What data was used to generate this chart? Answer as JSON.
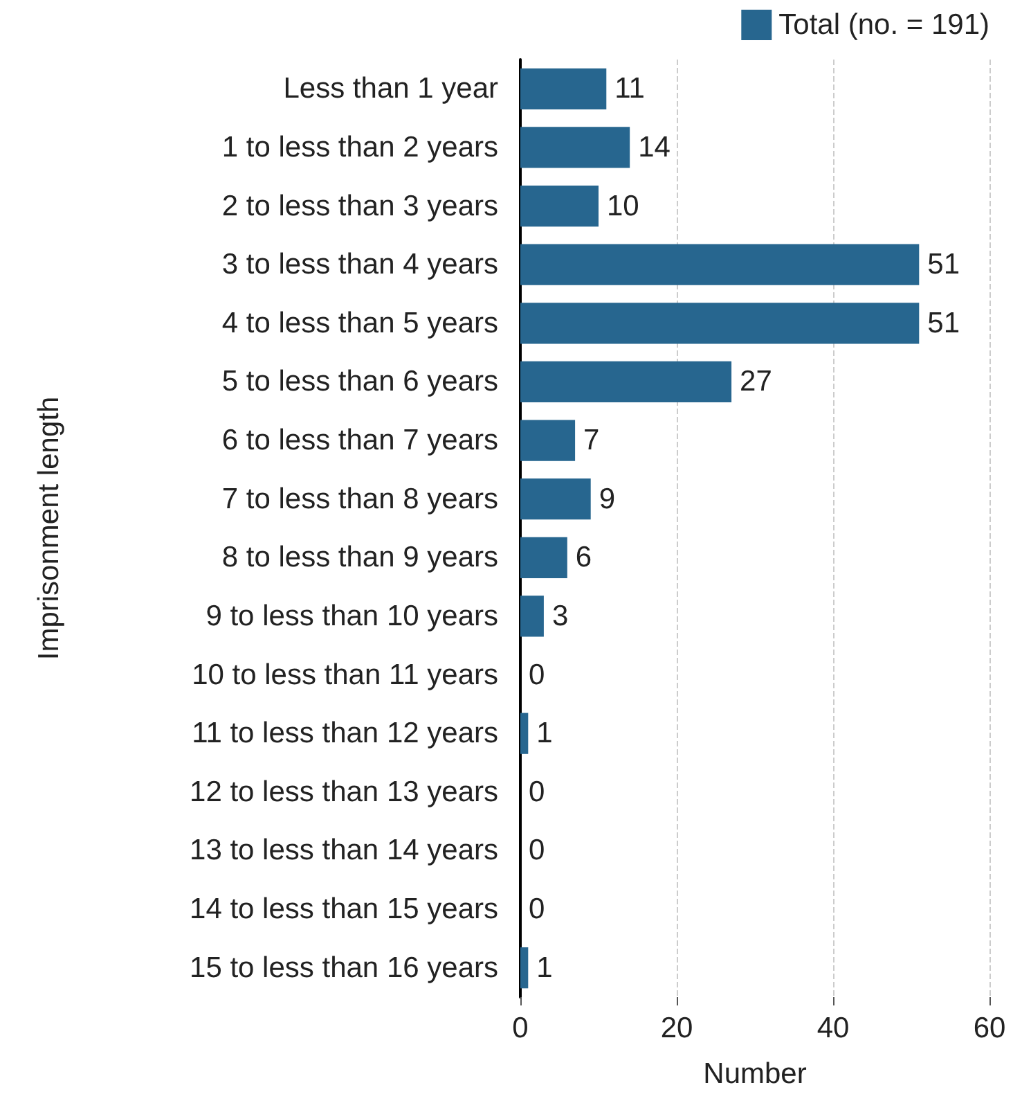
{
  "chart_data": {
    "type": "bar",
    "orientation": "horizontal",
    "xlabel": "Number",
    "ylabel": "Imprisonment length",
    "categories": [
      "Less than 1 year",
      "1 to less than 2 years",
      "2 to less than 3 years",
      "3 to less than 4 years",
      "4 to less than 5 years",
      "5 to less than 6 years",
      "6 to less than 7 years",
      "7 to less than 8 years",
      "8 to less than 9 years",
      "9 to less than 10 years",
      "10 to less than 11 years",
      "11 to less than 12 years",
      "12 to less than 13 years",
      "13 to less than 14 years",
      "14 to less than 15 years",
      "15 to less than 16 years"
    ],
    "series": [
      {
        "name": "Total (no. = 191)",
        "color": "#27668f",
        "values": [
          11,
          14,
          10,
          51,
          51,
          27,
          7,
          9,
          6,
          3,
          0,
          1,
          0,
          0,
          0,
          1
        ]
      }
    ],
    "xlim": [
      0,
      60
    ],
    "xticks": [
      0,
      20,
      40,
      60
    ],
    "grid": "x",
    "legend": "top right",
    "data_labels": true
  }
}
